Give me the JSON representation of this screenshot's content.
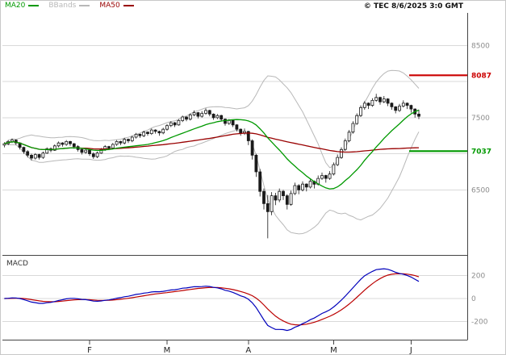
{
  "header": {
    "legend": [
      {
        "label": "MA20",
        "color": "#009900"
      },
      {
        "label": "BBands",
        "color": "#b8b8b8"
      },
      {
        "label": "MA50",
        "color": "#990000"
      }
    ],
    "copyright": "© TEC 8/6/2025 3:0 GMT"
  },
  "chart_data": [
    {
      "type": "candlestick",
      "panel": "price",
      "title": "",
      "y_axis": {
        "range": [
          5600,
          8950
        ],
        "tick_labels": [
          8500,
          7500,
          6500
        ],
        "gridlines": [
          8500,
          8000,
          7500,
          7000,
          6500
        ]
      },
      "x_axis": {
        "capacity": 120,
        "month_ticks": [
          {
            "label": "F",
            "index": 22
          },
          {
            "label": "M",
            "index": 42
          },
          {
            "label": "A",
            "index": 63
          },
          {
            "label": "M",
            "index": 85
          },
          {
            "label": "J",
            "index": 105
          }
        ]
      },
      "levels": [
        {
          "name": "resistance",
          "value": 8087,
          "label": "8087",
          "color": "#cc0000"
        },
        {
          "name": "support",
          "value": 7037,
          "label": "7037",
          "color": "#009900"
        }
      ],
      "indicators": {
        "ma20_period": 20,
        "ma50_period": 50,
        "bollinger_period": 20,
        "bollinger_stddev": 2
      },
      "colors": {
        "candle": "#1a1a1a",
        "ma20": "#009900",
        "ma50": "#990000",
        "bbands": "#b8b8b8",
        "grid": "#d9d9d9",
        "axis": "#444444",
        "tick_text": "#8c8c8c",
        "month_text": "#222222"
      },
      "candles_ohlc": [
        [
          7120,
          7160,
          7090,
          7140
        ],
        [
          7140,
          7190,
          7120,
          7170
        ],
        [
          7170,
          7210,
          7150,
          7190
        ],
        [
          7190,
          7200,
          7120,
          7150
        ],
        [
          7150,
          7160,
          7060,
          7090
        ],
        [
          7090,
          7100,
          7000,
          7030
        ],
        [
          7030,
          7050,
          6950,
          6980
        ],
        [
          6980,
          7000,
          6910,
          6940
        ],
        [
          6940,
          7010,
          6920,
          6990
        ],
        [
          6990,
          7000,
          6920,
          6950
        ],
        [
          6950,
          7030,
          6930,
          7010
        ],
        [
          7010,
          7090,
          7000,
          7070
        ],
        [
          7070,
          7090,
          7020,
          7050
        ],
        [
          7050,
          7130,
          7040,
          7110
        ],
        [
          7110,
          7170,
          7090,
          7150
        ],
        [
          7150,
          7160,
          7100,
          7130
        ],
        [
          7130,
          7190,
          7110,
          7170
        ],
        [
          7170,
          7180,
          7110,
          7140
        ],
        [
          7140,
          7150,
          7070,
          7100
        ],
        [
          7100,
          7120,
          7030,
          7060
        ],
        [
          7060,
          7080,
          6990,
          7020
        ],
        [
          7020,
          7080,
          7000,
          7050
        ],
        [
          7050,
          7060,
          6970,
          7000
        ],
        [
          7000,
          7020,
          6930,
          6960
        ],
        [
          6960,
          7030,
          6940,
          7010
        ],
        [
          7010,
          7080,
          7000,
          7060
        ],
        [
          7060,
          7120,
          7040,
          7100
        ],
        [
          7100,
          7110,
          7050,
          7080
        ],
        [
          7080,
          7150,
          7060,
          7130
        ],
        [
          7130,
          7190,
          7110,
          7170
        ],
        [
          7170,
          7180,
          7120,
          7150
        ],
        [
          7150,
          7220,
          7130,
          7200
        ],
        [
          7200,
          7210,
          7150,
          7180
        ],
        [
          7180,
          7250,
          7160,
          7230
        ],
        [
          7230,
          7290,
          7210,
          7270
        ],
        [
          7270,
          7280,
          7220,
          7250
        ],
        [
          7250,
          7320,
          7230,
          7300
        ],
        [
          7300,
          7310,
          7250,
          7280
        ],
        [
          7280,
          7350,
          7260,
          7330
        ],
        [
          7330,
          7340,
          7280,
          7310
        ],
        [
          7310,
          7320,
          7250,
          7290
        ],
        [
          7290,
          7360,
          7270,
          7340
        ],
        [
          7340,
          7410,
          7320,
          7390
        ],
        [
          7390,
          7450,
          7370,
          7430
        ],
        [
          7430,
          7440,
          7370,
          7400
        ],
        [
          7400,
          7480,
          7390,
          7460
        ],
        [
          7460,
          7530,
          7440,
          7510
        ],
        [
          7510,
          7520,
          7450,
          7480
        ],
        [
          7480,
          7560,
          7460,
          7540
        ],
        [
          7540,
          7600,
          7520,
          7570
        ],
        [
          7570,
          7580,
          7490,
          7520
        ],
        [
          7520,
          7590,
          7500,
          7560
        ],
        [
          7560,
          7630,
          7540,
          7600
        ],
        [
          7600,
          7610,
          7520,
          7550
        ],
        [
          7550,
          7560,
          7470,
          7500
        ],
        [
          7500,
          7550,
          7480,
          7530
        ],
        [
          7530,
          7540,
          7450,
          7480
        ],
        [
          7480,
          7490,
          7390,
          7420
        ],
        [
          7420,
          7480,
          7400,
          7460
        ],
        [
          7460,
          7470,
          7370,
          7400
        ],
        [
          7400,
          7410,
          7310,
          7340
        ],
        [
          7340,
          7350,
          7250,
          7290
        ],
        [
          7290,
          7350,
          7260,
          7310
        ],
        [
          7310,
          7320,
          7120,
          7180
        ],
        [
          7180,
          7200,
          6920,
          6980
        ],
        [
          6980,
          7000,
          6680,
          6750
        ],
        [
          6750,
          6790,
          6410,
          6480
        ],
        [
          6480,
          6520,
          6230,
          6310
        ],
        [
          6310,
          6430,
          5830,
          6200
        ],
        [
          6200,
          6470,
          6150,
          6420
        ],
        [
          6420,
          6460,
          6290,
          6360
        ],
        [
          6360,
          6520,
          6330,
          6480
        ],
        [
          6480,
          6500,
          6360,
          6420
        ],
        [
          6420,
          6440,
          6230,
          6300
        ],
        [
          6300,
          6490,
          6280,
          6450
        ],
        [
          6450,
          6600,
          6430,
          6560
        ],
        [
          6560,
          6580,
          6440,
          6500
        ],
        [
          6500,
          6620,
          6480,
          6580
        ],
        [
          6580,
          6590,
          6480,
          6540
        ],
        [
          6540,
          6660,
          6520,
          6620
        ],
        [
          6620,
          6630,
          6520,
          6580
        ],
        [
          6580,
          6700,
          6560,
          6660
        ],
        [
          6660,
          6740,
          6640,
          6700
        ],
        [
          6700,
          6710,
          6600,
          6660
        ],
        [
          6660,
          6760,
          6640,
          6720
        ],
        [
          6720,
          6880,
          6700,
          6850
        ],
        [
          6850,
          6990,
          6830,
          6950
        ],
        [
          6950,
          7090,
          6930,
          7060
        ],
        [
          7060,
          7210,
          7040,
          7180
        ],
        [
          7180,
          7330,
          7160,
          7300
        ],
        [
          7300,
          7450,
          7280,
          7420
        ],
        [
          7420,
          7560,
          7400,
          7530
        ],
        [
          7530,
          7670,
          7510,
          7640
        ],
        [
          7640,
          7730,
          7610,
          7700
        ],
        [
          7700,
          7710,
          7620,
          7670
        ],
        [
          7670,
          7770,
          7650,
          7740
        ],
        [
          7740,
          7830,
          7720,
          7780
        ],
        [
          7780,
          7790,
          7680,
          7720
        ],
        [
          7720,
          7800,
          7700,
          7760
        ],
        [
          7760,
          7770,
          7660,
          7700
        ],
        [
          7700,
          7710,
          7610,
          7650
        ],
        [
          7650,
          7660,
          7560,
          7600
        ],
        [
          7600,
          7690,
          7580,
          7660
        ],
        [
          7660,
          7740,
          7640,
          7700
        ],
        [
          7700,
          7710,
          7620,
          7670
        ],
        [
          7670,
          7680,
          7570,
          7620
        ],
        [
          7620,
          7630,
          7500,
          7550
        ],
        [
          7550,
          7610,
          7480,
          7520
        ]
      ]
    },
    {
      "type": "line",
      "panel": "macd",
      "title": "MACD",
      "derived_from": "closes of candles_ohlc",
      "params": {
        "fast": 12,
        "slow": 26,
        "signal": 9
      },
      "y_axis": {
        "range": [
          -360,
          360
        ],
        "tick_labels": [
          200,
          0,
          -200
        ]
      },
      "colors": {
        "macd": "#0000bb",
        "signal": "#bb0000"
      }
    }
  ]
}
